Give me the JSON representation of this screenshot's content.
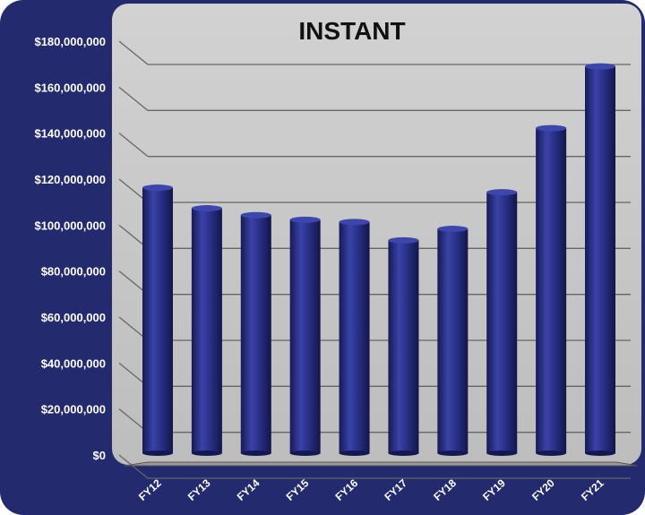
{
  "chart_data": {
    "type": "bar",
    "title": "INSTANT",
    "categories": [
      "FY12",
      "FY13",
      "FY14",
      "FY15",
      "FY16",
      "FY17",
      "FY18",
      "FY19",
      "FY20",
      "FY21"
    ],
    "values": [
      116000000,
      107000000,
      104000000,
      102000000,
      101000000,
      93000000,
      98000000,
      114000000,
      142000000,
      169000000
    ],
    "y_ticks": [
      "$0",
      "$20,000,000",
      "$40,000,000",
      "$60,000,000",
      "$80,000,000",
      "$100,000,000",
      "$120,000,000",
      "$140,000,000",
      "$160,000,000",
      "$180,000,000"
    ],
    "ylim": [
      0,
      180000000
    ],
    "grid": true,
    "colors": {
      "frame": "#232a6e",
      "plot_background": "#c8c8c8",
      "bar": "#2a3188",
      "grid": "#666666"
    }
  }
}
